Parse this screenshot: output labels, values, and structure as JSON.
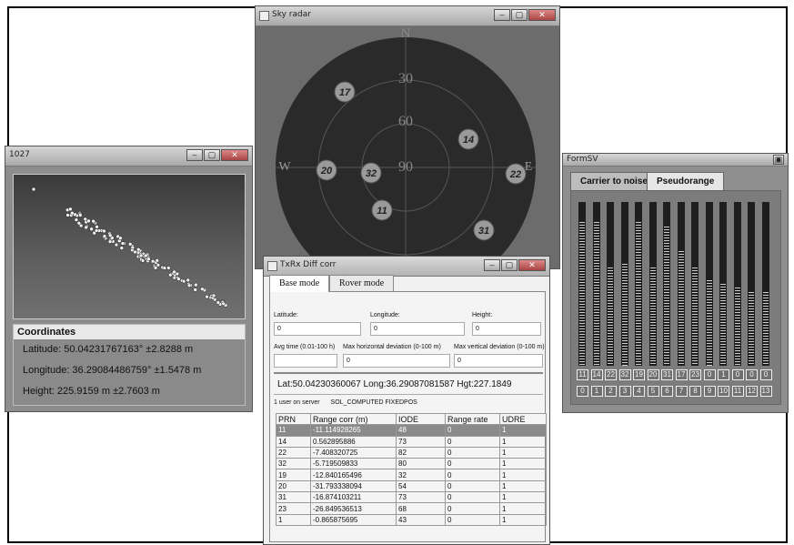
{
  "windows": {
    "w1027": {
      "title": "1027",
      "coords": {
        "heading": "Coordinates",
        "latitude": "Latitude: 50.04231767163° ±2.8288 m",
        "longitude": "Longitude: 36.29084486759° ±1.5478 m",
        "height": "Height: 225.9159 m ±2.7603 m"
      }
    },
    "sky": {
      "title": "Sky radar",
      "compass": {
        "n": "N",
        "e": "E",
        "w": "W"
      },
      "rings": [
        "30",
        "60",
        "90"
      ],
      "satellites": [
        "17",
        "14",
        "20",
        "32",
        "22",
        "11",
        "31"
      ]
    },
    "formsv": {
      "title": "FormSV",
      "tabs": [
        "Carrier to noise",
        "Pseudorange"
      ],
      "bar_levels": [
        0.88,
        0.88,
        0.6,
        0.62,
        0.88,
        0.6,
        0.85,
        0.7,
        0.6,
        0.52,
        0.5,
        0.48,
        0.45,
        0.45
      ],
      "prns": [
        "11",
        "14",
        "22",
        "32",
        "19",
        "20",
        "31",
        "17",
        "23",
        "0",
        "1",
        "0",
        "0",
        "0"
      ],
      "channels": [
        "0",
        "1",
        "2",
        "3",
        "4",
        "5",
        "6",
        "7",
        "8",
        "9",
        "10",
        "11",
        "12",
        "13"
      ]
    },
    "txrx": {
      "title": "TxRx Diff corr",
      "tabs": [
        "Base mode",
        "Rover mode"
      ],
      "latitude_label": "Latitude:",
      "latitude_value": "0",
      "longitude_label": "Longitude:",
      "longitude_value": "0",
      "height_label": "Height:",
      "height_value": "0",
      "avg_label": "Avg time (0.01-100 h)",
      "avg_value": "",
      "hdev_label": "Max horizontal deviation (0-100 m)",
      "hdev_value": "0",
      "vdev_label": "Max vertical deviation (0-100 m)",
      "vdev_value": "0",
      "position_line": "Lat:50.04230360067 Long:36.29087081587 Hgt:227.1849",
      "users_line": "1 user on server",
      "solution": "SOL_COMPUTED FIXEDPOS",
      "table": {
        "headers": [
          "PRN",
          "Range corr (m)",
          "IODE",
          "Range rate",
          "UDRE"
        ],
        "rows": [
          [
            "11",
            "-11.114928265",
            "48",
            "0",
            "1"
          ],
          [
            "14",
            "0.562895886",
            "73",
            "0",
            "1"
          ],
          [
            "22",
            "-7.408320725",
            "82",
            "0",
            "1"
          ],
          [
            "32",
            "-5.719509833",
            "80",
            "0",
            "1"
          ],
          [
            "19",
            "-12.840165496",
            "32",
            "0",
            "1"
          ],
          [
            "20",
            "-31.793338094",
            "54",
            "0",
            "1"
          ],
          [
            "31",
            "-16.874103211",
            "73",
            "0",
            "1"
          ],
          [
            "23",
            "-26.849536513",
            "68",
            "0",
            "1"
          ],
          [
            "1",
            "-0.865875695",
            "43",
            "0",
            "1"
          ]
        ]
      }
    }
  }
}
